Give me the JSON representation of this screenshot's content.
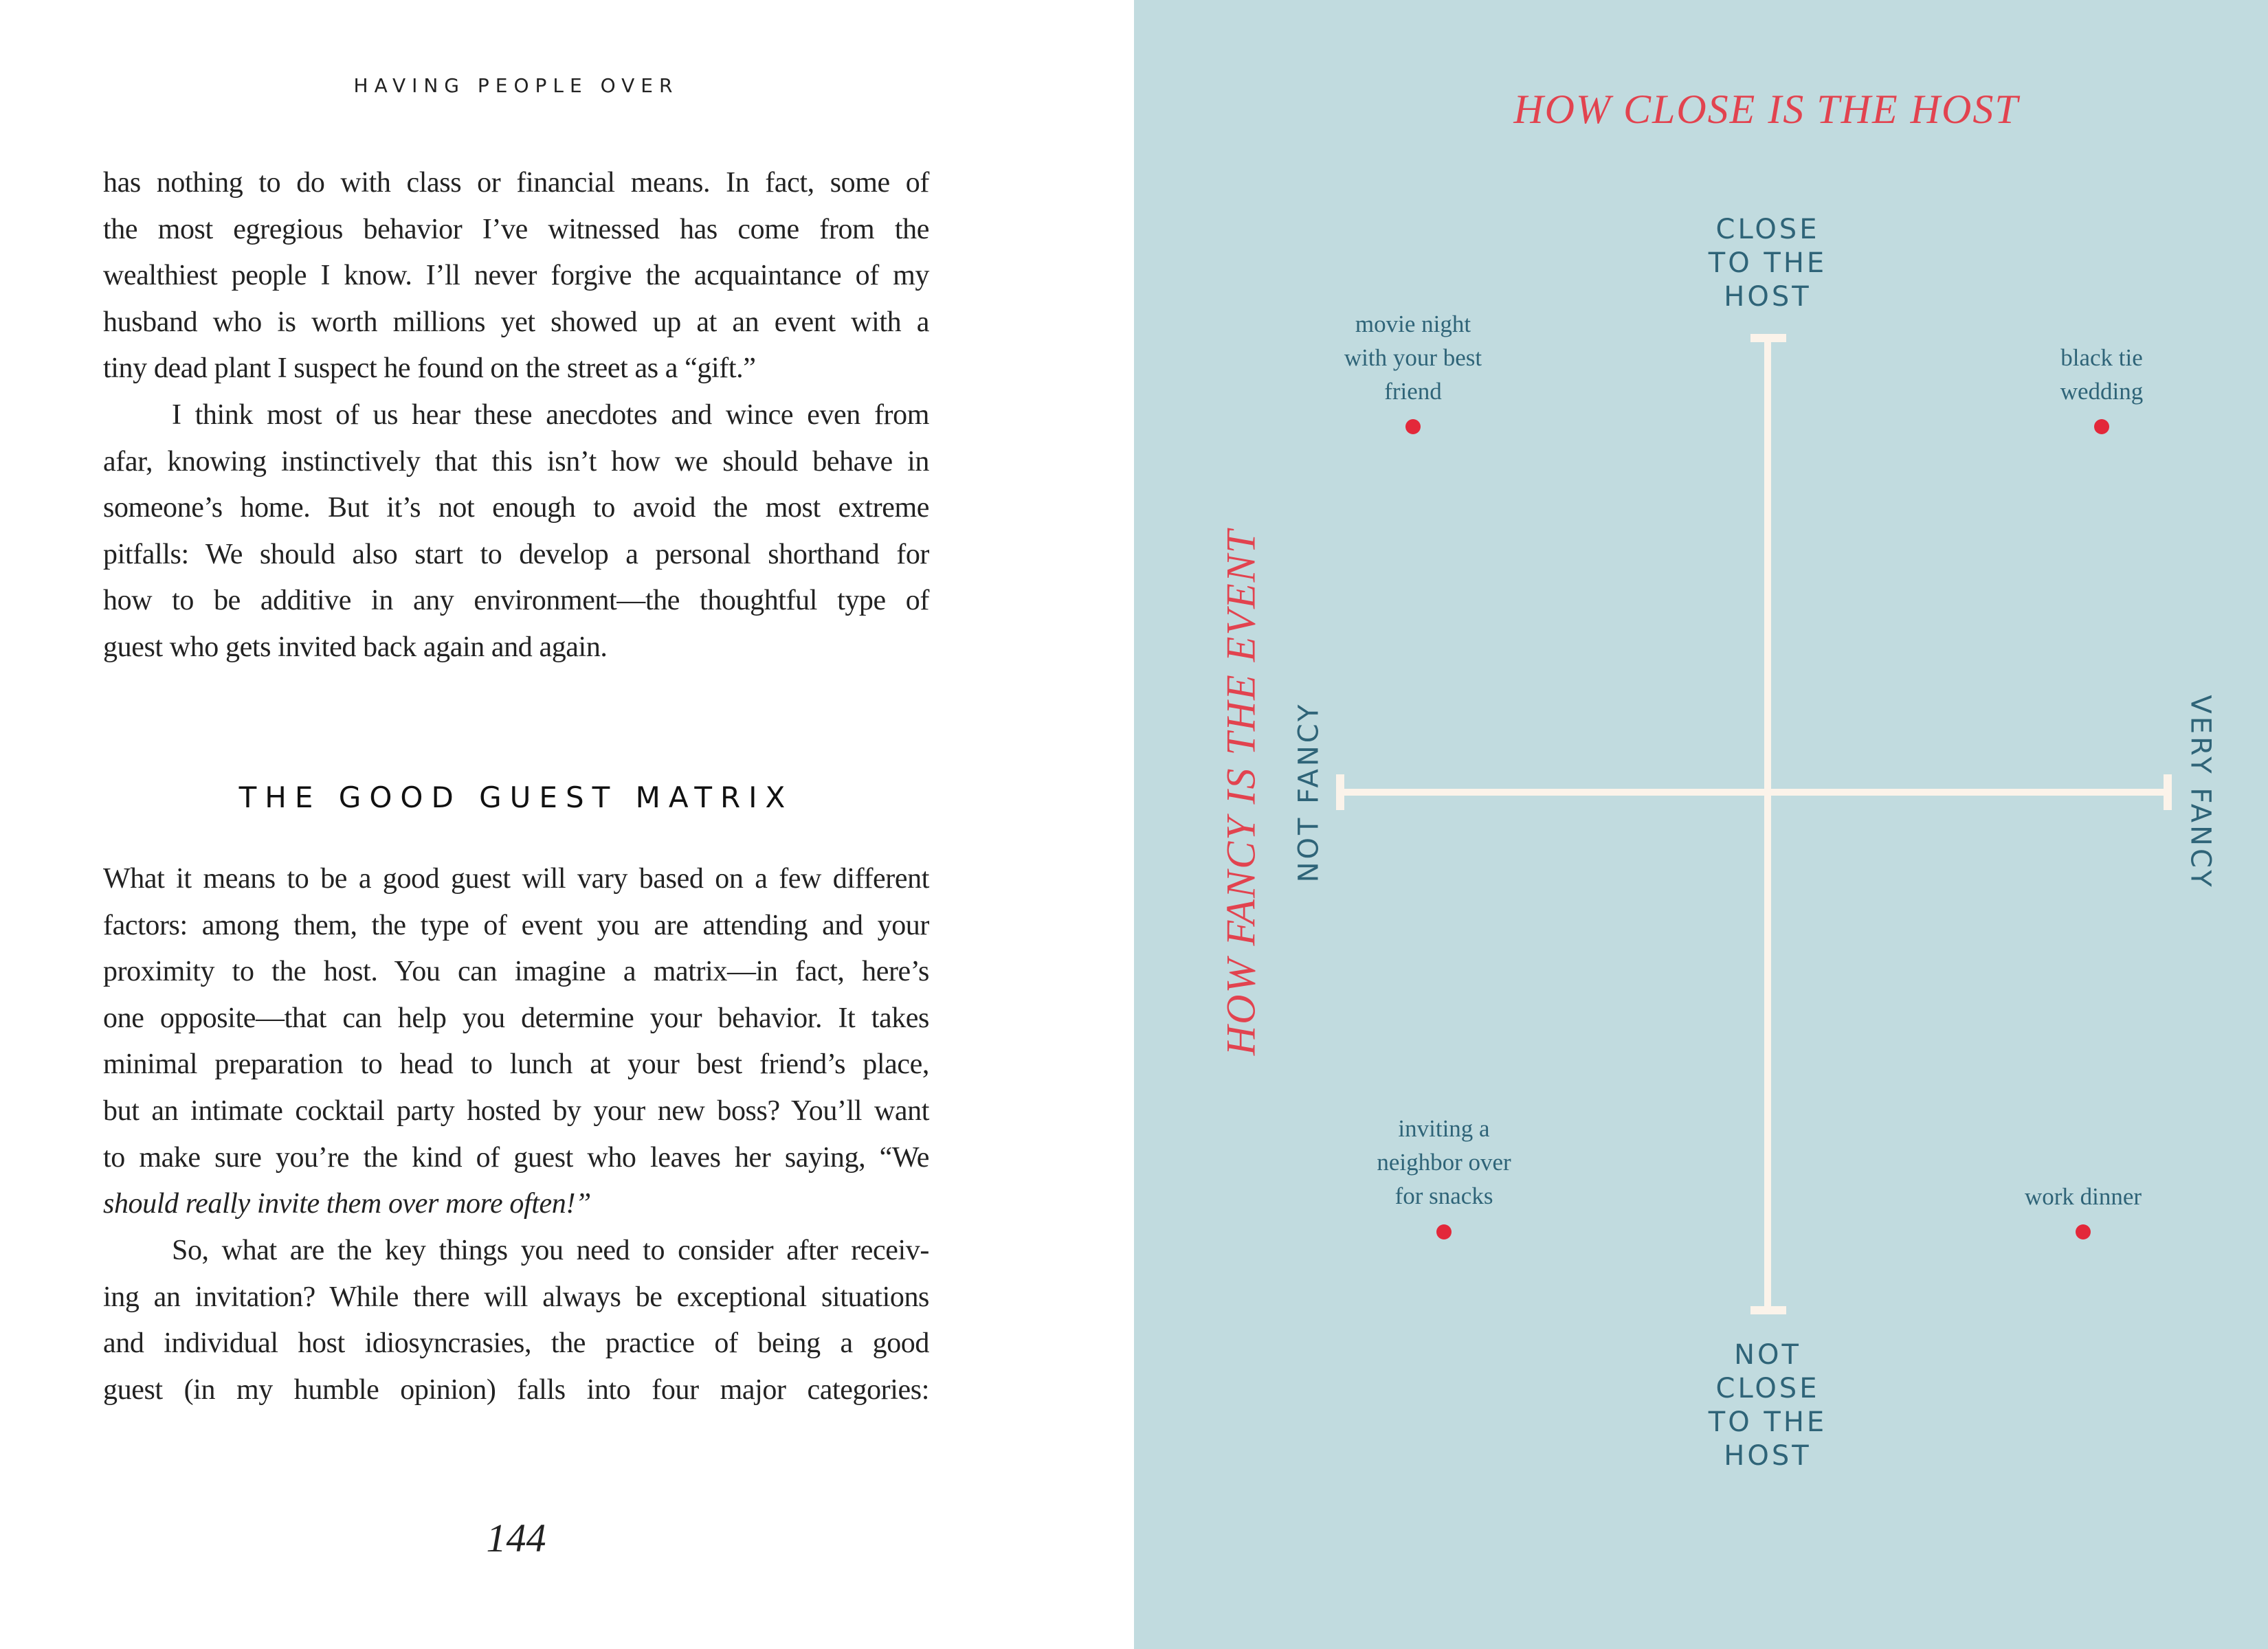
{
  "left_page": {
    "running_head": "HAVING PEOPLE OVER",
    "paragraph1_lines": [
      "has nothing to do with class or financial means. In fact, some of",
      "the most egregious behavior I’ve witnessed has come from the",
      "wealthiest people I know. I’ll never forgive the acquaintance of my",
      "husband who is worth millions yet showed up at an event with a",
      "tiny dead plant I suspect he found on the street as a “gift.”"
    ],
    "paragraph2_lines": [
      "I think most of us hear these anecdotes and wince even from",
      "afar, knowing instinctively that this isn’t how we should behave in",
      "someone’s home. But it’s not enough to avoid the most extreme",
      "pitfalls: We should also start to develop a personal shorthand for",
      "how to be additive in any environment—the thoughtful type of",
      "guest who gets invited back again and again."
    ],
    "section_heading": "THE GOOD GUEST MATRIX",
    "paragraph3_lines": [
      "What it means to be a good guest will vary based on a few different",
      "factors: among them, the type of event you are attending and your",
      "proximity to the host. You can imagine a matrix—in fact, here’s",
      "one opposite—that can help you determine your behavior. It takes",
      "minimal preparation to head to lunch at your best friend’s place,",
      "but an intimate cocktail party hosted by your new boss? You’ll want",
      "to make sure you’re the kind of guest who leaves her saying, “We",
      "should really invite them over more often!”"
    ],
    "paragraph4_lines": [
      "So, what are the key things you need to consider after receiv-",
      "ing an invitation? While there will always be exceptional situations",
      "and individual host idiosyncrasies, the practice of being a good",
      "guest (in my humble opinion) falls into four major categories:"
    ],
    "page_number": "144"
  },
  "matrix": {
    "colors": {
      "background": "#c1dbdf",
      "title": "#e2434f",
      "label": "#2f6478",
      "axis": "#fbf3ea",
      "dot": "#e3283a"
    },
    "title_top": "HOW CLOSE IS THE HOST",
    "title_side": "HOW FANCY IS THE EVENT",
    "top_label": [
      "CLOSE",
      "TO THE",
      "HOST"
    ],
    "bottom_label": [
      "NOT",
      "CLOSE",
      "TO THE",
      "HOST"
    ],
    "left_label": "NOT FANCY",
    "right_label": "VERY FANCY",
    "points": [
      {
        "lines": [
          "movie night",
          "with your best",
          "friend"
        ],
        "quadrant": "close / not fancy"
      },
      {
        "lines": [
          "black tie",
          "wedding"
        ],
        "quadrant": "close / very fancy"
      },
      {
        "lines": [
          "inviting a",
          "neighbor over",
          "for snacks"
        ],
        "quadrant": "not close / not fancy"
      },
      {
        "lines": [
          "work dinner"
        ],
        "quadrant": "not close / very fancy"
      }
    ]
  }
}
